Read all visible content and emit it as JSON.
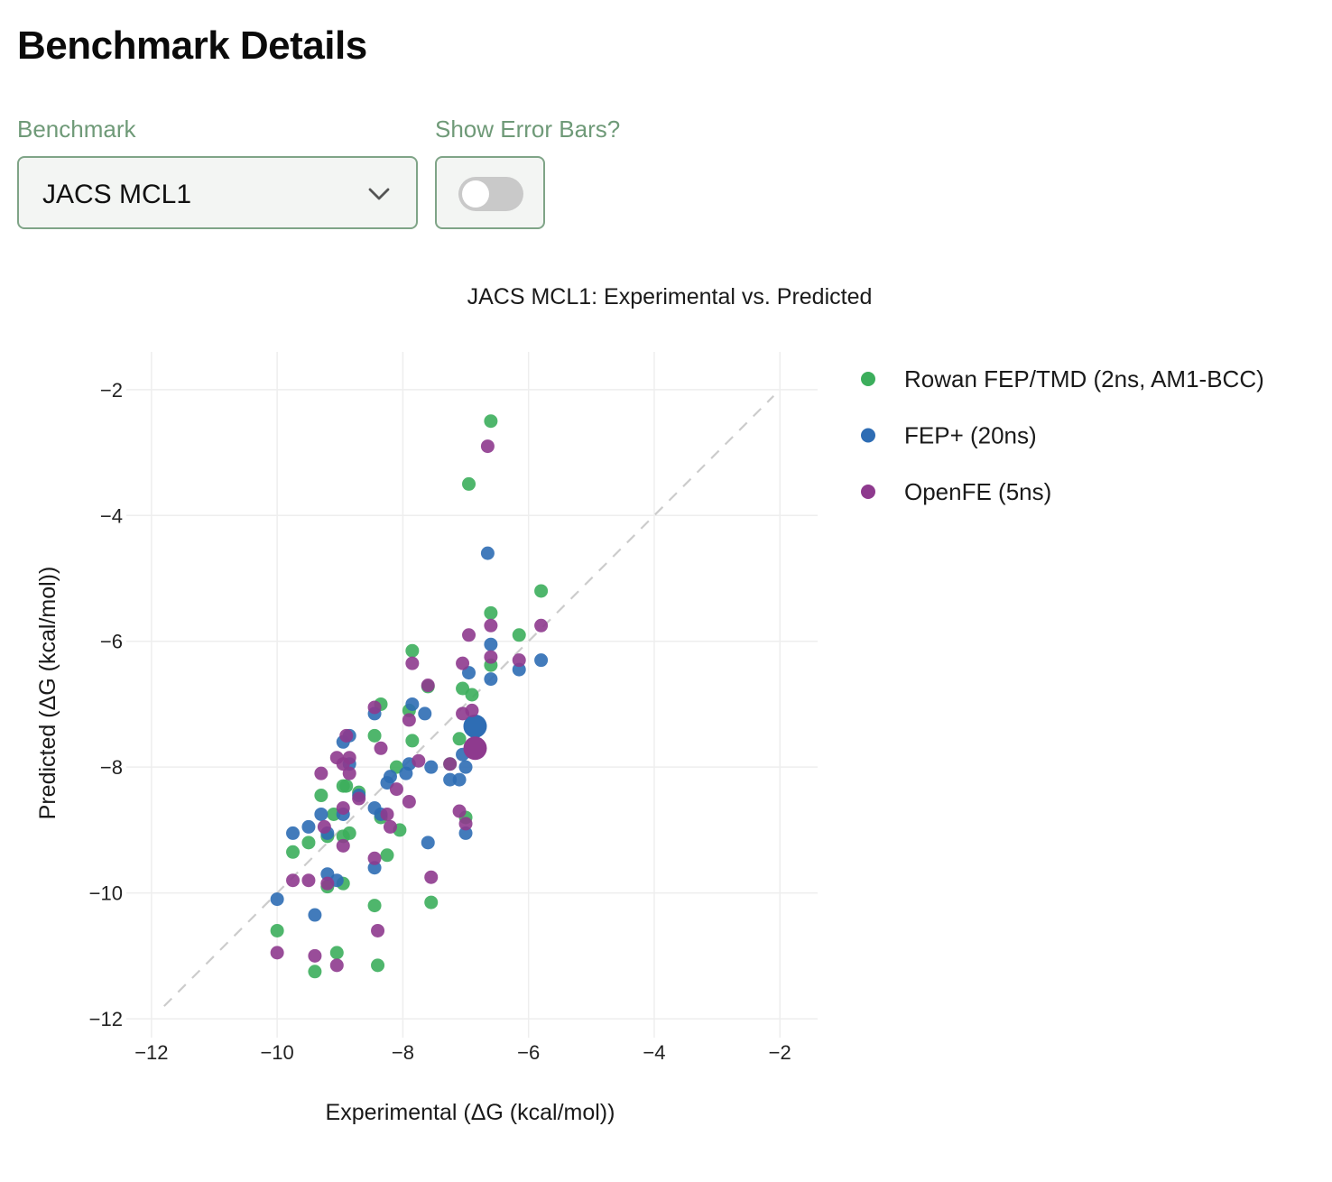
{
  "page": {
    "title": "Benchmark Details"
  },
  "controls": {
    "benchmark_label": "Benchmark",
    "benchmark_value": "JACS MCL1",
    "error_bars_label": "Show Error Bars?",
    "error_bars_on": false
  },
  "icons": {
    "dropdown": "chevron-down-icon",
    "toggle": "toggle-switch"
  },
  "chart_data": {
    "type": "scatter",
    "title": "JACS MCL1: Experimental vs. Predicted",
    "xlabel": "Experimental (ΔG (kcal/mol))",
    "ylabel": "Predicted (ΔG (kcal/mol))",
    "xlim": [
      -12.4,
      -1.4
    ],
    "ylim": [
      -12.3,
      -1.4
    ],
    "xticks": [
      -12,
      -10,
      -8,
      -6,
      -4,
      -2
    ],
    "yticks": [
      -2,
      -4,
      -6,
      -8,
      -10,
      -12
    ],
    "grid": true,
    "legend_position": "top-right",
    "diagonal": {
      "from": -11.8,
      "to": -2.1,
      "color": "#cccccc",
      "dash": true
    },
    "series": [
      {
        "name": "Rowan FEP/TMD (2ns, AM1-BCC)",
        "color": "#3cae5c",
        "points": [
          [
            -6.6,
            -2.5
          ],
          [
            -6.95,
            -3.5
          ],
          [
            -5.8,
            -5.2
          ],
          [
            -6.6,
            -5.55
          ],
          [
            -6.15,
            -5.9
          ],
          [
            -7.85,
            -6.15
          ],
          [
            -6.6,
            -6.38
          ],
          [
            -7.6,
            -6.72
          ],
          [
            -7.05,
            -6.75
          ],
          [
            -6.9,
            -6.85
          ],
          [
            -8.35,
            -7.0
          ],
          [
            -7.9,
            -7.1
          ],
          [
            -8.45,
            -7.5
          ],
          [
            -7.85,
            -7.58
          ],
          [
            -7.1,
            -7.55
          ],
          [
            -8.1,
            -8.0
          ],
          [
            -7.25,
            -7.95
          ],
          [
            -8.95,
            -8.3
          ],
          [
            -8.7,
            -8.4
          ],
          [
            -9.3,
            -8.45
          ],
          [
            -8.9,
            -8.3
          ],
          [
            -9.1,
            -8.75
          ],
          [
            -8.35,
            -8.8
          ],
          [
            -9.2,
            -9.1
          ],
          [
            -8.95,
            -9.1
          ],
          [
            -8.85,
            -9.05
          ],
          [
            -8.05,
            -9.0
          ],
          [
            -7.0,
            -8.8
          ],
          [
            -9.5,
            -9.2
          ],
          [
            -9.75,
            -9.35
          ],
          [
            -8.25,
            -9.4
          ],
          [
            -8.95,
            -9.85
          ],
          [
            -9.2,
            -9.9
          ],
          [
            -8.45,
            -10.2
          ],
          [
            -7.55,
            -10.15
          ],
          [
            -10.0,
            -10.6
          ],
          [
            -9.4,
            -11.25
          ],
          [
            -9.05,
            -10.95
          ],
          [
            -8.4,
            -11.15
          ]
        ]
      },
      {
        "name": "FEP+ (20ns)",
        "color": "#2e6db4",
        "points": [
          [
            -6.65,
            -4.6
          ],
          [
            -6.6,
            -6.05
          ],
          [
            -5.8,
            -6.3
          ],
          [
            -6.15,
            -6.45
          ],
          [
            -6.6,
            -6.6
          ],
          [
            -6.95,
            -6.5
          ],
          [
            -7.85,
            -7.0
          ],
          [
            -7.65,
            -7.15
          ],
          [
            -8.45,
            -7.15
          ],
          [
            -8.85,
            -7.5
          ],
          [
            -8.95,
            -7.6
          ],
          [
            -7.05,
            -7.8
          ],
          [
            -8.85,
            -7.95
          ],
          [
            -7.9,
            -7.95
          ],
          [
            -7.55,
            -8.0
          ],
          [
            -7.95,
            -8.1
          ],
          [
            -7.0,
            -8.0
          ],
          [
            -8.2,
            -8.15
          ],
          [
            -8.25,
            -8.25
          ],
          [
            -7.1,
            -8.2
          ],
          [
            -7.25,
            -8.2
          ],
          [
            -8.7,
            -8.45
          ],
          [
            -8.45,
            -8.65
          ],
          [
            -8.35,
            -8.75
          ],
          [
            -9.3,
            -8.75
          ],
          [
            -8.95,
            -8.75
          ],
          [
            -9.5,
            -8.95
          ],
          [
            -9.75,
            -9.05
          ],
          [
            -9.2,
            -9.05
          ],
          [
            -7.0,
            -9.05
          ],
          [
            -7.6,
            -9.2
          ],
          [
            -8.45,
            -9.6
          ],
          [
            -9.2,
            -9.7
          ],
          [
            -9.05,
            -9.8
          ],
          [
            -10.0,
            -10.1
          ],
          [
            -9.4,
            -10.35
          ]
        ],
        "highlight": [
          -6.85,
          -7.35
        ]
      },
      {
        "name": "OpenFE (5ns)",
        "color": "#8e3a8e",
        "points": [
          [
            -6.65,
            -2.9
          ],
          [
            -5.8,
            -5.75
          ],
          [
            -6.6,
            -5.75
          ],
          [
            -6.95,
            -5.9
          ],
          [
            -6.6,
            -6.25
          ],
          [
            -6.15,
            -6.3
          ],
          [
            -7.05,
            -6.35
          ],
          [
            -7.85,
            -6.35
          ],
          [
            -7.6,
            -6.7
          ],
          [
            -8.45,
            -7.05
          ],
          [
            -7.05,
            -7.15
          ],
          [
            -6.9,
            -7.1
          ],
          [
            -7.9,
            -7.25
          ],
          [
            -8.9,
            -7.5
          ],
          [
            -8.35,
            -7.7
          ],
          [
            -9.05,
            -7.85
          ],
          [
            -8.85,
            -7.85
          ],
          [
            -8.95,
            -7.95
          ],
          [
            -7.75,
            -7.9
          ],
          [
            -7.25,
            -7.95
          ],
          [
            -8.85,
            -8.1
          ],
          [
            -9.3,
            -8.1
          ],
          [
            -8.1,
            -8.35
          ],
          [
            -8.7,
            -8.5
          ],
          [
            -7.9,
            -8.55
          ],
          [
            -8.95,
            -8.65
          ],
          [
            -7.1,
            -8.7
          ],
          [
            -8.25,
            -8.75
          ],
          [
            -7.0,
            -8.9
          ],
          [
            -8.2,
            -8.95
          ],
          [
            -9.25,
            -8.95
          ],
          [
            -8.95,
            -9.25
          ],
          [
            -8.45,
            -9.45
          ],
          [
            -7.55,
            -9.75
          ],
          [
            -9.75,
            -9.8
          ],
          [
            -9.5,
            -9.8
          ],
          [
            -9.2,
            -9.85
          ],
          [
            -8.4,
            -10.6
          ],
          [
            -10.0,
            -10.95
          ],
          [
            -9.4,
            -11.0
          ],
          [
            -9.05,
            -11.15
          ]
        ],
        "highlight": [
          -6.85,
          -7.7
        ]
      }
    ]
  }
}
